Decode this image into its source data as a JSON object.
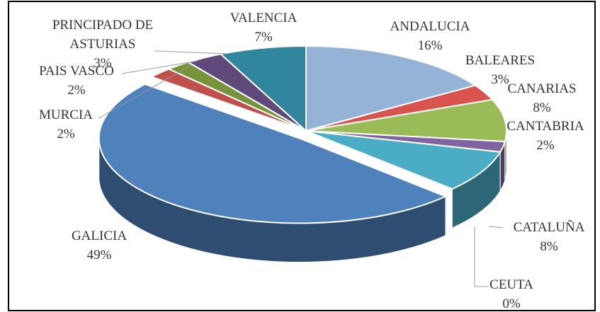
{
  "chart_data": {
    "type": "pie",
    "categories": [
      "ANDALUCIA",
      "BALEARES",
      "CANARIAS",
      "CANTABRIA",
      "CATALUÑA",
      "CEUTA",
      "GALICIA",
      "MURCIA",
      "PAIS VASCO",
      "PRINCIPADO DE ASTURIAS",
      "VALENCIA"
    ],
    "values": [
      16,
      3,
      8,
      2,
      8,
      0,
      49,
      2,
      2,
      3,
      7
    ],
    "value_labels": [
      "16%",
      "3%",
      "8%",
      "2%",
      "8%",
      "0%",
      "49%",
      "2%",
      "2%",
      "3%",
      "7%"
    ],
    "colors": [
      "#95b3d7",
      "#d9534f",
      "#9bbb59",
      "#8064a2",
      "#4bacc6",
      "#f79646",
      "#4f81bd",
      "#c0504d",
      "#77933c",
      "#5f497a",
      "#31859c"
    ]
  }
}
